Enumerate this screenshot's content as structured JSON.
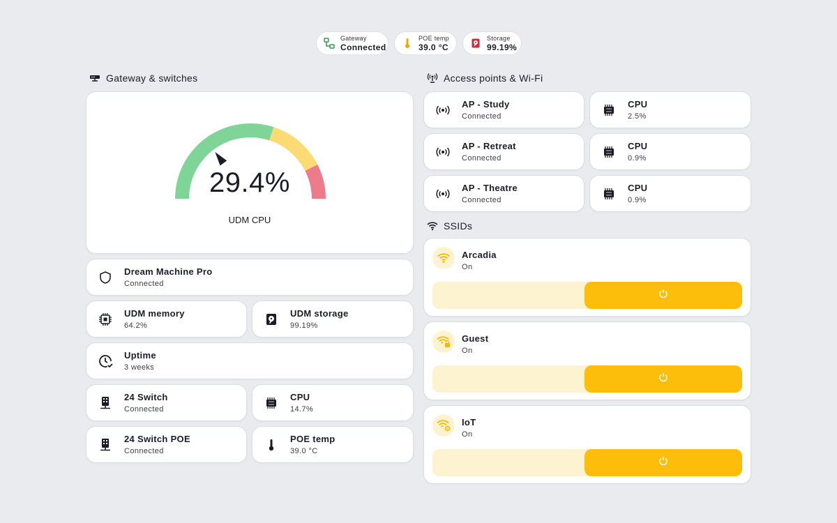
{
  "status_chips": {
    "gateway": {
      "label": "Gateway",
      "value": "Connected",
      "icon": "network-icon",
      "color": "#2e9d4a"
    },
    "poe_temp": {
      "label": "POE temp",
      "value": "39.0 °C",
      "icon": "thermometer-icon",
      "color": "#f0a800"
    },
    "storage": {
      "label": "Storage",
      "value": "99.19%",
      "icon": "harddisk-icon",
      "color": "#d3283a"
    }
  },
  "gateway_section": {
    "title": "Gateway & switches",
    "gauge": {
      "value": 29.4,
      "display": "29.4%",
      "label": "UDM CPU",
      "min": 0,
      "max": 100,
      "segments": [
        {
          "from": 0,
          "to": 60,
          "color": "#7ed597"
        },
        {
          "from": 60,
          "to": 85,
          "color": "#fcda74"
        },
        {
          "from": 85,
          "to": 100,
          "color": "#ee7b89"
        }
      ]
    },
    "tiles": {
      "dream_machine": {
        "name": "Dream Machine Pro",
        "state": "Connected",
        "icon": "shield-icon"
      },
      "udm_memory": {
        "name": "UDM memory",
        "state": "64.2%",
        "icon": "memory-icon"
      },
      "udm_storage": {
        "name": "UDM storage",
        "state": "99.19%",
        "icon": "harddisk-icon"
      },
      "uptime": {
        "name": "Uptime",
        "state": "3 weeks",
        "icon": "clock-check-icon"
      },
      "switch24": {
        "name": "24 Switch",
        "state": "Connected",
        "icon": "switch-icon"
      },
      "switch24_cpu": {
        "name": "CPU",
        "state": "14.7%",
        "icon": "cpu-icon"
      },
      "switch24poe": {
        "name": "24 Switch POE",
        "state": "Connected",
        "icon": "switch-icon"
      },
      "poe_temp": {
        "name": "POE temp",
        "state": "39.0 °C",
        "icon": "thermometer-icon"
      }
    }
  },
  "access_section": {
    "title": "Access points & Wi-Fi",
    "aps": [
      {
        "name": "AP - Study",
        "state": "Connected",
        "cpu_label": "CPU",
        "cpu": "2.5%"
      },
      {
        "name": "AP - Retreat",
        "state": "Connected",
        "cpu_label": "CPU",
        "cpu": "0.9%"
      },
      {
        "name": "AP - Theatre",
        "state": "Connected",
        "cpu_label": "CPU",
        "cpu": "0.9%"
      }
    ]
  },
  "ssid_section": {
    "title": "SSIDs",
    "accent": "#fcbd0b",
    "ssids": [
      {
        "name": "Arcadia",
        "state": "On",
        "icon": "wifi-icon"
      },
      {
        "name": "Guest",
        "state": "On",
        "icon": "wifi-lock-icon"
      },
      {
        "name": "IoT",
        "state": "On",
        "icon": "wifi-cog-icon"
      }
    ]
  }
}
